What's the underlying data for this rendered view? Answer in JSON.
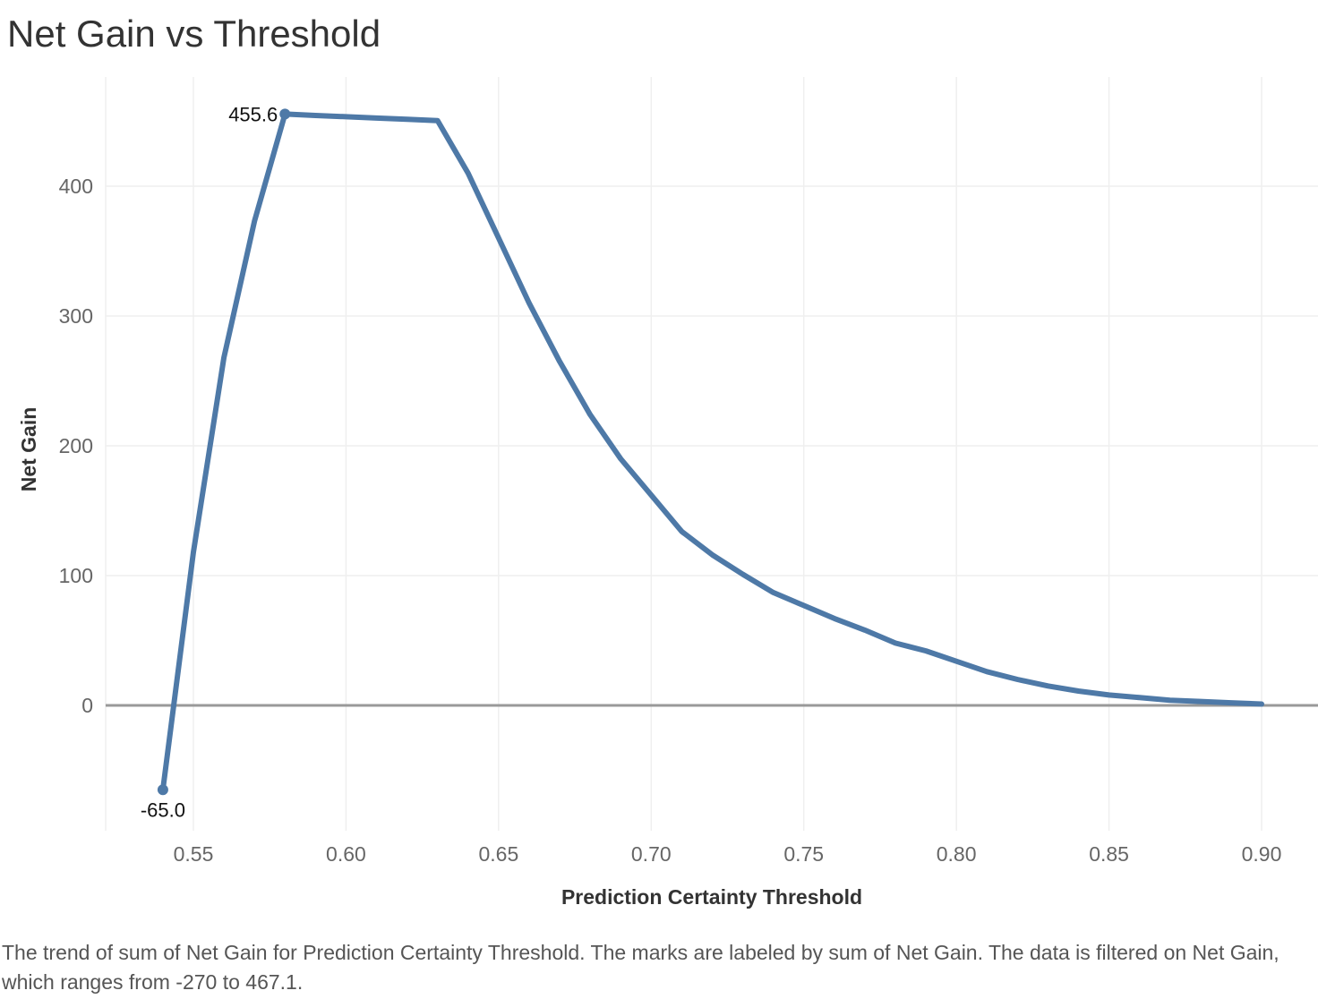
{
  "title": "Net Gain vs Threshold",
  "caption": "The trend of sum of Net Gain for Prediction Certainty Threshold.  The marks are labeled by sum of Net Gain. The data is filtered on Net Gain, which ranges from -270 to 467.1.",
  "colors": {
    "line": "#4e79a7",
    "grid": "#efefef",
    "zero_line": "#999999"
  },
  "chart_data": {
    "type": "line",
    "title": "Net Gain vs Threshold",
    "xlabel": "Prediction Certainty Threshold",
    "ylabel": "Net Gain",
    "xlim": [
      0.52,
      0.92
    ],
    "ylim": [
      -95,
      485
    ],
    "xticks": [
      0.55,
      0.6,
      0.65,
      0.7,
      0.75,
      0.8,
      0.85,
      0.9
    ],
    "xtick_labels": [
      "0.55",
      "0.60",
      "0.65",
      "0.70",
      "0.75",
      "0.80",
      "0.85",
      "0.90"
    ],
    "yticks": [
      0,
      100,
      200,
      300,
      400
    ],
    "ytick_labels": [
      "0",
      "100",
      "200",
      "300",
      "400"
    ],
    "grid": true,
    "series": [
      {
        "x": [
          0.54,
          0.55,
          0.56,
          0.57,
          0.58,
          0.59,
          0.6,
          0.61,
          0.62,
          0.63,
          0.64,
          0.65,
          0.66,
          0.67,
          0.68,
          0.69,
          0.7,
          0.71,
          0.72,
          0.73,
          0.74,
          0.75,
          0.76,
          0.77,
          0.78,
          0.79,
          0.8,
          0.81,
          0.82,
          0.83,
          0.84,
          0.85,
          0.86,
          0.87,
          0.88,
          0.89,
          0.9
        ],
        "y": [
          -65.0,
          118,
          268,
          373,
          455.6,
          454.5,
          453.5,
          452.5,
          451.5,
          450.5,
          410,
          360,
          310,
          265,
          224,
          190,
          162,
          134,
          116,
          101,
          87,
          77,
          67,
          58,
          48,
          42,
          34,
          26,
          20,
          15,
          11,
          8,
          6,
          4,
          3,
          2,
          1
        ]
      }
    ],
    "labels": [
      {
        "x": 0.58,
        "y": 455.6,
        "text": "455.6"
      },
      {
        "x": 0.54,
        "y": -65.0,
        "text": "-65.0"
      }
    ]
  }
}
